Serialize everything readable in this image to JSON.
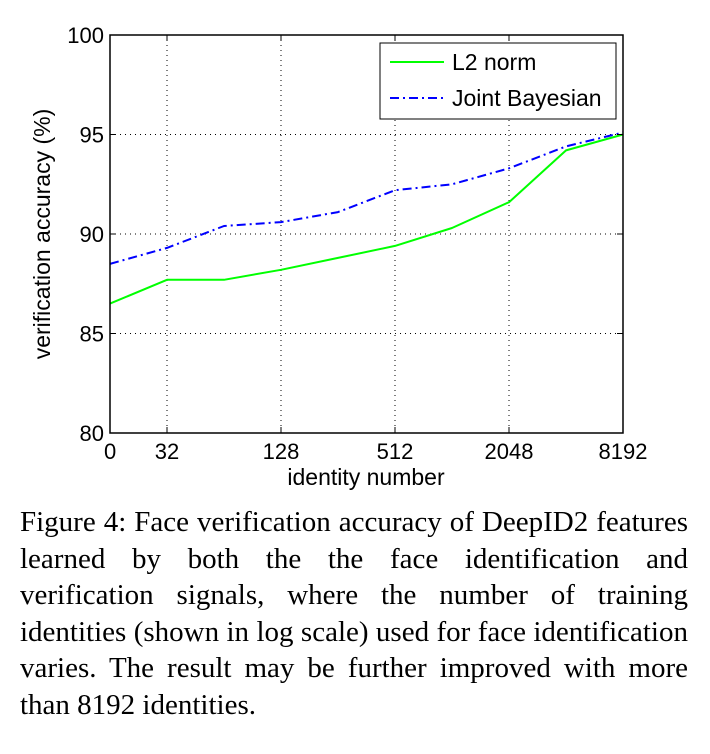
{
  "chart_data": {
    "type": "line",
    "title": "",
    "xlabel": "identity number",
    "ylabel": "verification accuracy (%)",
    "x_ticks": [
      "0",
      "32",
      "128",
      "512",
      "2048",
      "8192"
    ],
    "x_scale": "log2",
    "y_ticks": [
      "80",
      "85",
      "90",
      "95",
      "100"
    ],
    "ylim": [
      80,
      100
    ],
    "grid": true,
    "legend_position": "top-right",
    "series": [
      {
        "name": "L2 norm",
        "color": "#00ff00",
        "style": "solid",
        "x": [
          0,
          32,
          64,
          128,
          256,
          512,
          1024,
          2048,
          4096,
          8192
        ],
        "y": [
          86.5,
          87.7,
          87.7,
          88.2,
          88.8,
          89.4,
          90.3,
          91.6,
          94.2,
          95.0
        ]
      },
      {
        "name": "Joint Bayesian",
        "color": "#0000ff",
        "style": "dashdot",
        "x": [
          0,
          32,
          64,
          128,
          256,
          512,
          1024,
          2048,
          4096,
          8192
        ],
        "y": [
          88.5,
          89.3,
          90.4,
          90.6,
          91.1,
          92.2,
          92.5,
          93.3,
          94.4,
          95.1
        ]
      }
    ]
  },
  "caption": "Figure 4: Face verification accuracy of DeepID2 features learned by both the the face identification and verification signals, where the number of training identities (shown in log scale) used for face identification varies.  The result may be further improved with more than 8192 identities."
}
